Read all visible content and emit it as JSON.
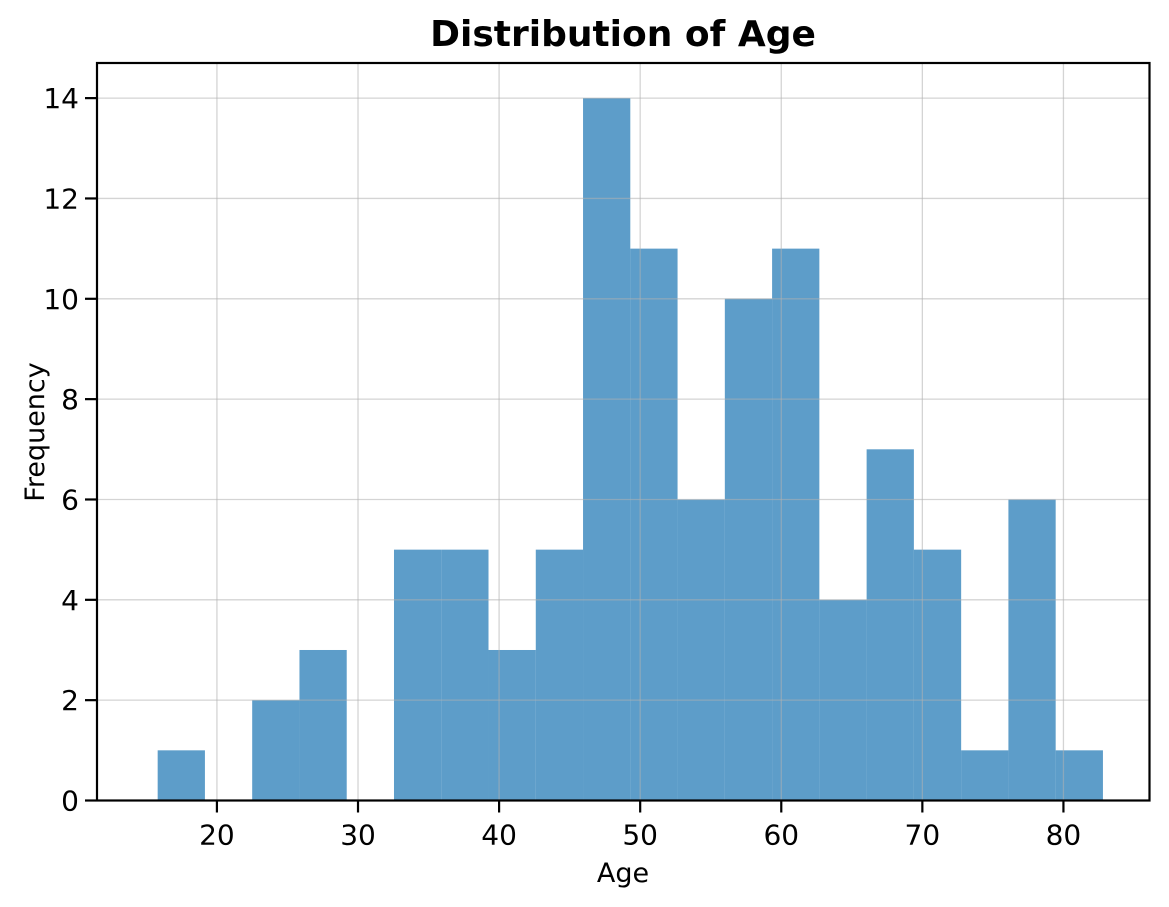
{
  "window": {
    "background": "#ffffff"
  },
  "chart_data": {
    "type": "histogram",
    "title": "Distribution of Age",
    "xlabel": "Age",
    "ylabel": "Frequency",
    "bin_edges": [
      15.8,
      19.15,
      22.5,
      25.85,
      29.2,
      32.55,
      35.9,
      39.25,
      42.6,
      45.95,
      49.3,
      52.65,
      56.0,
      59.35,
      62.7,
      66.05,
      69.4,
      72.75,
      76.1,
      79.45,
      82.8
    ],
    "counts": [
      1,
      0,
      2,
      3,
      0,
      5,
      5,
      3,
      5,
      14,
      11,
      6,
      10,
      11,
      4,
      7,
      5,
      1,
      6,
      1
    ],
    "xticks": [
      20,
      30,
      40,
      50,
      60,
      70,
      80
    ],
    "yticks": [
      0,
      2,
      4,
      6,
      8,
      10,
      12,
      14
    ],
    "xlim": [
      11.5,
      86.1
    ],
    "ylim": [
      0,
      14.7
    ],
    "grid": true,
    "legend": null,
    "bar_color": "#1f77b4",
    "bar_opacity": 0.72,
    "bar_color_rendered": "#5e9dc8",
    "grid_color": "#b0b0b0",
    "axis_color": "#000000",
    "text_color": "#000000"
  }
}
